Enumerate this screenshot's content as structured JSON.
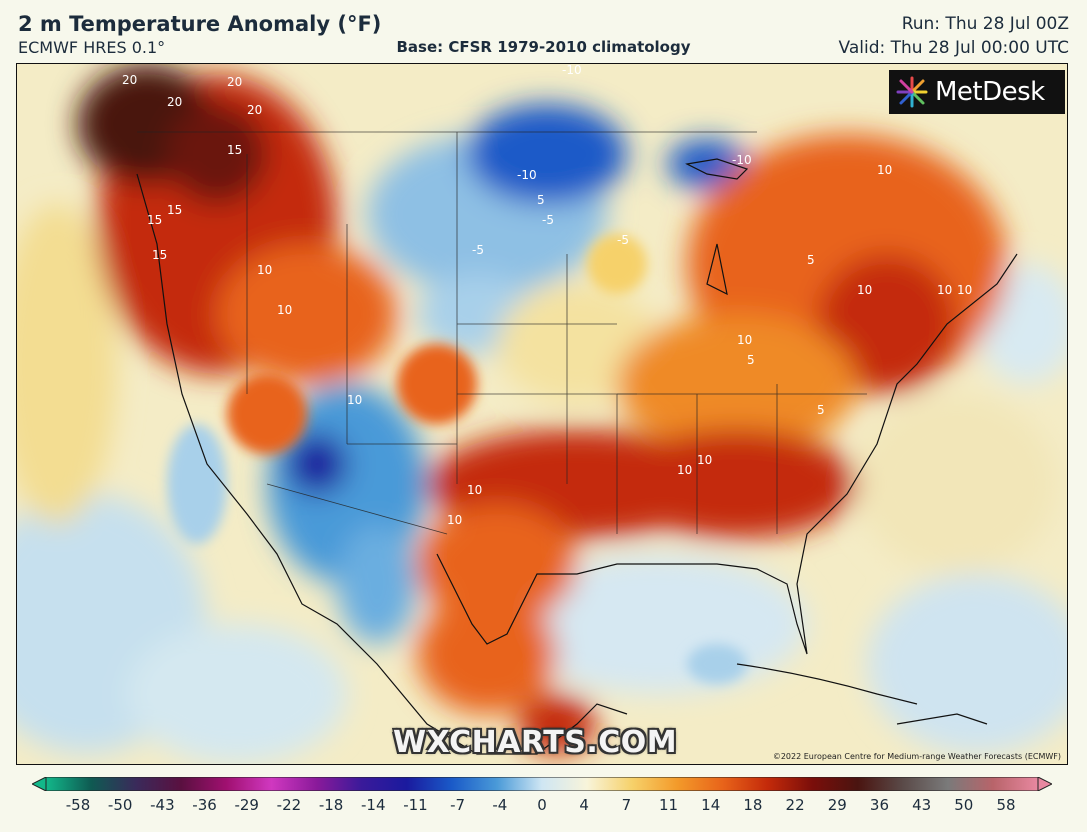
{
  "header": {
    "title": "2 m Temperature Anomaly (°F)",
    "model": "ECMWF HRES 0.1°",
    "base": "Base: CFSR 1979-2010 climatology",
    "run": "Run: Thu 28 Jul 00Z",
    "valid": "Valid: Thu 28 Jul 00:00 UTC"
  },
  "map": {
    "logo_text": "MetDesk",
    "logo_icon": "metdesk-starburst-icon",
    "watermark": "WXCHARTS.COM",
    "copyright": "©2022 European Centre for Medium-range Weather Forecasts (ECMWF)",
    "contour_labels": [
      "20",
      "20",
      "20",
      "20",
      "15",
      "15",
      "15",
      "15",
      "10",
      "10",
      "10",
      "10",
      "10",
      "10",
      "10",
      "10",
      "10",
      "10",
      "5",
      "5",
      "5",
      "5",
      "-10",
      "-10",
      "-10",
      "-5",
      "-5",
      "-5",
      "10",
      "10"
    ]
  },
  "legend": {
    "ticks": [
      "-58",
      "-50",
      "-43",
      "-36",
      "-29",
      "-22",
      "-18",
      "-14",
      "-11",
      "-7",
      "-4",
      "0",
      "4",
      "7",
      "11",
      "14",
      "18",
      "22",
      "29",
      "36",
      "43",
      "50",
      "58"
    ],
    "colors": [
      "#12b88a",
      "#0f5a52",
      "#3a2a5a",
      "#5a1040",
      "#a01070",
      "#d038c0",
      "#8a1a9a",
      "#3a1a9a",
      "#1a1a9e",
      "#1a5ac8",
      "#4a9ad8",
      "#cfe6f3",
      "#f8f4da",
      "#f6d16a",
      "#f39a2a",
      "#e8641a",
      "#c42a0a",
      "#7a0e0a",
      "#4a1410",
      "#5a4a48",
      "#7a7a7a",
      "#b8646a",
      "#e888a0"
    ]
  }
}
